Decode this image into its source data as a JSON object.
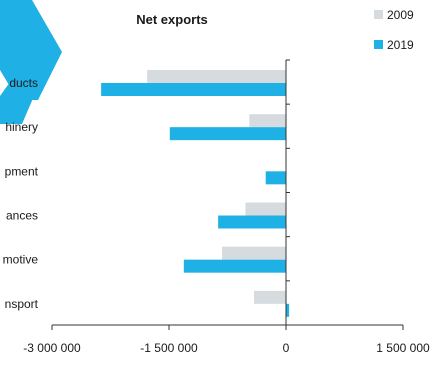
{
  "chart_data": {
    "type": "bar",
    "orientation": "horizontal",
    "title": "Net exports",
    "categories": [
      "...ducts",
      "...hinery",
      "...pment",
      "...ances",
      "...motive",
      "...nsport"
    ],
    "series": [
      {
        "name": "2009",
        "color": "#d6dbe0",
        "values": [
          -1780000,
          -470000,
          0,
          -520000,
          -820000,
          -410000
        ]
      },
      {
        "name": "2019",
        "color": "#1fb0e6",
        "values": [
          -2370000,
          -1490000,
          -260000,
          -870000,
          -1310000,
          40000
        ]
      }
    ],
    "xlim": [
      -3000000,
      1500000
    ],
    "xticks": [
      -3000000,
      -1500000,
      0,
      1500000
    ],
    "xtick_labels": [
      "-3 000 000",
      "-1 500 000",
      "0",
      "1 500 000"
    ],
    "legend_position": "top-right",
    "grid": false
  },
  "decor": {
    "logo_color": "#1fb0e6",
    "accent_name": "brand-chevron-shape"
  }
}
